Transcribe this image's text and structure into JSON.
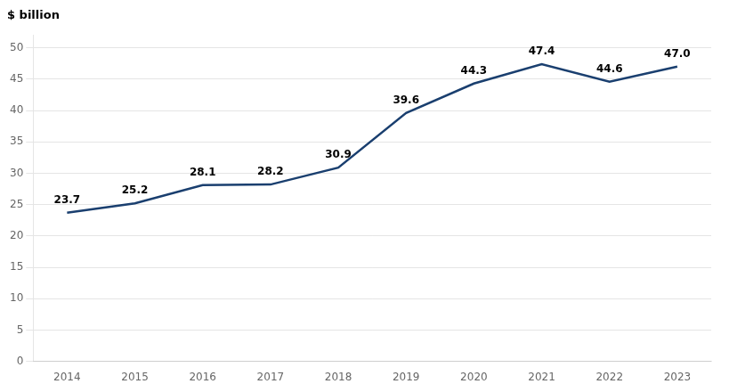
{
  "chart_data": {
    "type": "line",
    "ylabel": "$ billion",
    "x": [
      2014,
      2015,
      2016,
      2017,
      2018,
      2019,
      2020,
      2021,
      2022,
      2023
    ],
    "values": [
      23.7,
      25.2,
      28.1,
      28.2,
      30.9,
      39.6,
      44.3,
      47.4,
      44.6,
      47.0
    ],
    "value_labels": [
      "23.7",
      "25.2",
      "28.1",
      "28.2",
      "30.9",
      "39.6",
      "44.3",
      "47.4",
      "44.6",
      "47.0"
    ],
    "data_labels": true,
    "color": "#1a3f6f",
    "xlim": [
      2013.5,
      2023.5
    ],
    "xticks": [
      2014,
      2015,
      2016,
      2017,
      2018,
      2019,
      2020,
      2021,
      2022,
      2023
    ],
    "ylim": [
      0,
      52
    ],
    "yticks": [
      0,
      5,
      10,
      15,
      20,
      25,
      30,
      35,
      40,
      45,
      50
    ],
    "grid": "y"
  }
}
